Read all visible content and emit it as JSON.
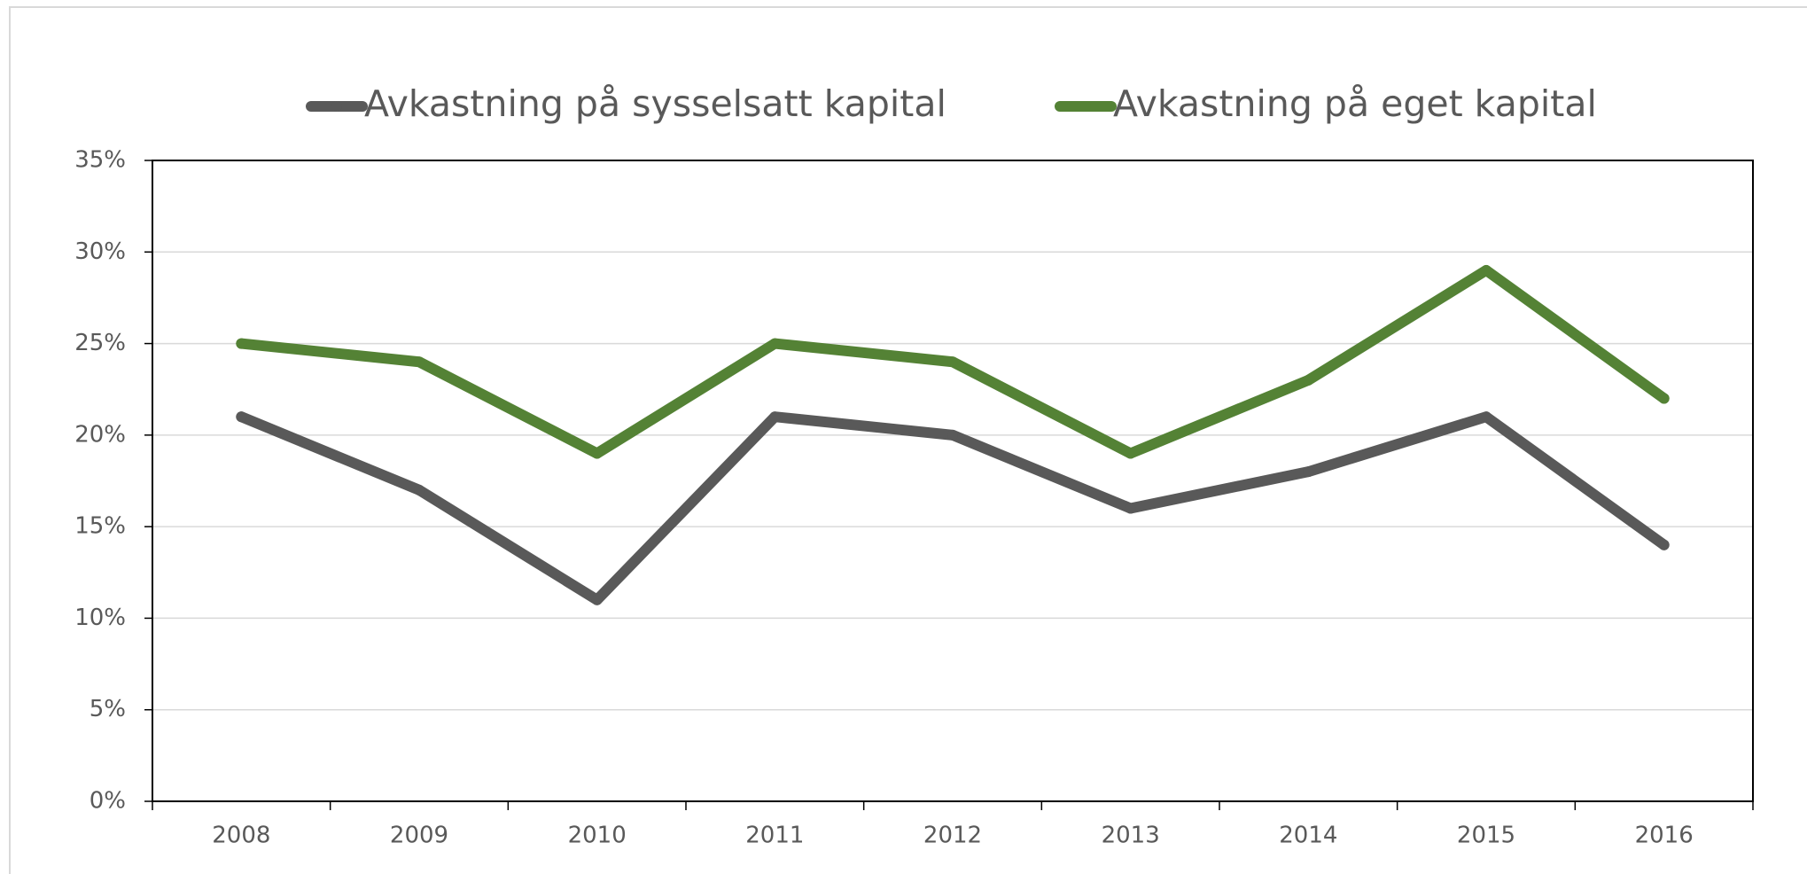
{
  "chart_data": {
    "type": "line",
    "categories": [
      "2008",
      "2009",
      "2010",
      "2011",
      "2012",
      "2013",
      "2014",
      "2015",
      "2016"
    ],
    "series": [
      {
        "name": "Avkastning på sysselsatt kapital",
        "color": "#595959",
        "values": [
          21,
          17,
          11,
          21,
          20,
          16,
          18,
          21,
          14
        ]
      },
      {
        "name": "Avkastning på eget kapital",
        "color": "#548235",
        "values": [
          25,
          24,
          19,
          25,
          24,
          19,
          23,
          29,
          22
        ]
      }
    ],
    "ylim": [
      0,
      35
    ],
    "yticks": [
      {
        "value": 0,
        "label": "0%"
      },
      {
        "value": 5,
        "label": "5%"
      },
      {
        "value": 10,
        "label": "10%"
      },
      {
        "value": 15,
        "label": "15%"
      },
      {
        "value": 20,
        "label": "20%"
      },
      {
        "value": 25,
        "label": "25%"
      },
      {
        "value": 30,
        "label": "30%"
      },
      {
        "value": 35,
        "label": "35%"
      }
    ],
    "grid": true,
    "legend": "top"
  }
}
